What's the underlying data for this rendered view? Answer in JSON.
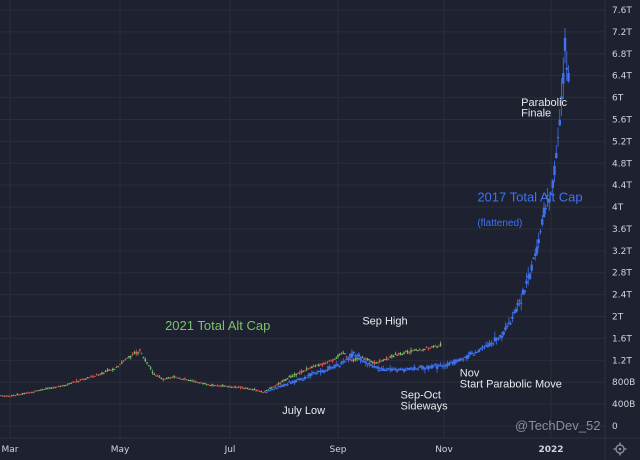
{
  "chart_data": {
    "type": "line",
    "title": "",
    "xlabel": "",
    "ylabel": "",
    "x_tick_labels": [
      "Mar",
      "May",
      "Jul",
      "Sep",
      "Nov",
      "2022"
    ],
    "y_tick_labels": [
      "0",
      "400B",
      "800B",
      "1.2T",
      "1.6T",
      "2T",
      "2.4T",
      "2.8T",
      "3.2T",
      "3.6T",
      "4T",
      "4.4T",
      "4.8T",
      "5.2T",
      "5.6T",
      "6T",
      "6.4T",
      "6.8T",
      "7.2T",
      "7.6T"
    ],
    "ylim_trillions": [
      0,
      7.6
    ],
    "x_dates": [
      "2021-03-01",
      "2021-05-01",
      "2021-07-01",
      "2021-09-01",
      "2021-11-01",
      "2022-01-01"
    ],
    "grid": true,
    "series": [
      {
        "name": "2021 Total Alt Cap",
        "color": "#7cc36b",
        "style": "candles",
        "points_trillions": [
          [
            "2021-02-20",
            0.56
          ],
          [
            "2021-03-01",
            0.55
          ],
          [
            "2021-03-10",
            0.6
          ],
          [
            "2021-03-20",
            0.67
          ],
          [
            "2021-04-01",
            0.75
          ],
          [
            "2021-04-10",
            0.85
          ],
          [
            "2021-04-20",
            0.95
          ],
          [
            "2021-04-28",
            1.05
          ],
          [
            "2021-05-05",
            1.25
          ],
          [
            "2021-05-12",
            1.38
          ],
          [
            "2021-05-15",
            1.2
          ],
          [
            "2021-05-20",
            0.95
          ],
          [
            "2021-05-25",
            0.85
          ],
          [
            "2021-06-01",
            0.9
          ],
          [
            "2021-06-10",
            0.82
          ],
          [
            "2021-06-20",
            0.75
          ],
          [
            "2021-07-01",
            0.72
          ],
          [
            "2021-07-10",
            0.7
          ],
          [
            "2021-07-20",
            0.62
          ],
          [
            "2021-07-28",
            0.75
          ],
          [
            "2021-08-05",
            0.9
          ],
          [
            "2021-08-15",
            1.05
          ],
          [
            "2021-08-25",
            1.15
          ],
          [
            "2021-09-05",
            1.35
          ],
          [
            "2021-09-08",
            1.2
          ],
          [
            "2021-09-15",
            1.25
          ],
          [
            "2021-09-22",
            1.15
          ],
          [
            "2021-10-01",
            1.25
          ],
          [
            "2021-10-10",
            1.35
          ],
          [
            "2021-10-20",
            1.4
          ],
          [
            "2021-10-30",
            1.48
          ]
        ]
      },
      {
        "name": "2017 Total Alt Cap",
        "subtitle": "(flattened)",
        "color": "#3f72f3",
        "style": "candles",
        "points_trillions": [
          [
            "2021-07-22",
            0.63
          ],
          [
            "2021-08-01",
            0.75
          ],
          [
            "2021-08-10",
            0.85
          ],
          [
            "2021-08-20",
            0.98
          ],
          [
            "2021-09-01",
            1.1
          ],
          [
            "2021-09-10",
            1.32
          ],
          [
            "2021-09-18",
            1.15
          ],
          [
            "2021-09-25",
            1.05
          ],
          [
            "2021-10-05",
            1.02
          ],
          [
            "2021-10-15",
            1.05
          ],
          [
            "2021-10-25",
            1.08
          ],
          [
            "2021-11-01",
            1.1
          ],
          [
            "2021-11-10",
            1.2
          ],
          [
            "2021-11-20",
            1.35
          ],
          [
            "2021-11-28",
            1.5
          ],
          [
            "2021-12-05",
            1.7
          ],
          [
            "2021-12-12",
            2.1
          ],
          [
            "2021-12-18",
            2.6
          ],
          [
            "2021-12-24",
            3.2
          ],
          [
            "2021-12-28",
            3.9
          ],
          [
            "2022-01-01",
            4.2
          ],
          [
            "2022-01-04",
            4.9
          ],
          [
            "2022-01-07",
            6.0
          ],
          [
            "2022-01-09",
            6.9
          ],
          [
            "2022-01-11",
            6.4
          ]
        ]
      }
    ],
    "annotations": [
      {
        "text": "2021 Total Alt Cap",
        "date": "2021-05-26",
        "value": 1.75,
        "style": "green"
      },
      {
        "text": "2017 Total Alt Cap",
        "date": "2021-11-20",
        "value": 4.1,
        "style": "blue"
      },
      {
        "text": "(flattened)",
        "date": "2021-11-20",
        "value": 3.65,
        "style": "blue-sub"
      },
      {
        "text": "Sep High",
        "date": "2021-09-15",
        "value": 1.85,
        "style": "white"
      },
      {
        "text": "July Low",
        "date": "2021-07-31",
        "value": 0.22,
        "style": "white"
      },
      {
        "text": "Sep-Oct",
        "date": "2021-10-07",
        "value": 0.5,
        "style": "white"
      },
      {
        "text": "Sideways",
        "date": "2021-10-07",
        "value": 0.3,
        "style": "white"
      },
      {
        "text": "Nov",
        "date": "2021-11-10",
        "value": 0.9,
        "style": "white"
      },
      {
        "text": "Start Parabolic Move",
        "date": "2021-11-10",
        "value": 0.7,
        "style": "white"
      },
      {
        "text": "Parabolic",
        "date": "2021-12-15",
        "value": 5.85,
        "style": "white"
      },
      {
        "text": "Finale",
        "date": "2021-12-15",
        "value": 5.65,
        "style": "white"
      }
    ],
    "watermark": "@TechDev_52"
  },
  "colors": {
    "background": "#1e2230",
    "grid": "#2a2e39",
    "text": "#d1d4dc"
  }
}
